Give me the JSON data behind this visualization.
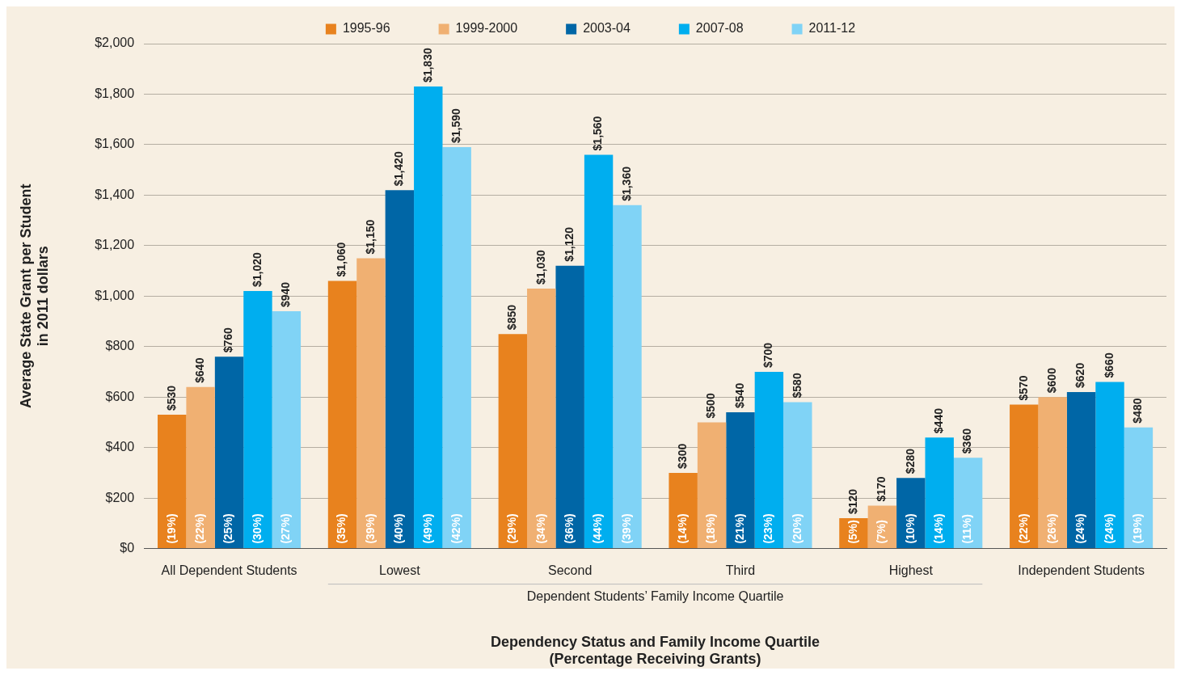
{
  "chart_data": {
    "type": "bar",
    "xlabel": "Dependency Status and Family Income Quartile\n(Percentage Receiving Grants)",
    "ylabel": "Average State Grant per Student\nin 2011 dollars",
    "categories": [
      "All Dependent Students",
      "Lowest",
      "Second",
      "Third",
      "Highest",
      "Independent Students"
    ],
    "series": [
      {
        "name": "1995-96",
        "color": "#e8821e",
        "values": [
          530,
          1060,
          850,
          300,
          120,
          570
        ],
        "value_labels": [
          "$530",
          "$1,060",
          "$850",
          "$300",
          "$120",
          "$570"
        ]
      },
      {
        "name": "1999-2000",
        "color": "#f0b072",
        "values": [
          640,
          1150,
          1030,
          500,
          170,
          600
        ],
        "value_labels": [
          "$640",
          "$1,150",
          "$1,030",
          "$500",
          "$170",
          "$600"
        ]
      },
      {
        "name": "2003-04",
        "color": "#0066a6",
        "values": [
          760,
          1420,
          1120,
          540,
          280,
          620
        ],
        "value_labels": [
          "$760",
          "$1,420",
          "$1,120",
          "$540",
          "$280",
          "$620"
        ]
      },
      {
        "name": "2007-08",
        "color": "#00aeef",
        "values": [
          1020,
          1830,
          1560,
          700,
          440,
          660
        ],
        "value_labels": [
          "$1,020",
          "$1,830",
          "$1,560",
          "$700",
          "$440",
          "$660"
        ]
      },
      {
        "name": "2011-12",
        "color": "#80d3f6",
        "values": [
          940,
          1590,
          1360,
          580,
          360,
          480
        ],
        "value_labels": [
          "$940",
          "$1,590",
          "$1,360",
          "$580",
          "$360",
          "$480"
        ]
      }
    ],
    "ylim": [
      0,
      2000
    ],
    "yticks": [
      {
        "value": 0,
        "label": "$0"
      },
      {
        "value": 200,
        "label": "$200"
      },
      {
        "value": 400,
        "label": "$400"
      },
      {
        "value": 600,
        "label": "$600"
      },
      {
        "value": 800,
        "label": "$800"
      },
      {
        "value": 1000,
        "label": "$1,000"
      },
      {
        "value": 1200,
        "label": "$1,200"
      },
      {
        "value": 1400,
        "label": "$1,400"
      },
      {
        "value": 1600,
        "label": "$1,600"
      },
      {
        "value": 1800,
        "label": "$1,800"
      },
      {
        "value": 2000,
        "label": "$2,000"
      }
    ],
    "grid": "y",
    "legend": "top",
    "annotations": [
      "Dependent Students’ Family Income Quartile",
      "(19%)",
      "(22%)",
      "(25%)",
      "(30%)",
      "(27%)",
      "(35%)",
      "(39%)",
      "(40%)",
      "(49%)",
      "(42%)",
      "(29%)",
      "(34%)",
      "(36%)",
      "(44%)",
      "(39%)",
      "(14%)",
      "(18%)",
      "(21%)",
      "(23%)",
      "(20%)",
      "(5%)",
      "(7%)",
      "(10%)",
      "(14%)",
      "(11%)",
      "(22%)",
      "(26%)",
      "(24%)",
      "(24%)",
      "(19%)"
    ]
  }
}
